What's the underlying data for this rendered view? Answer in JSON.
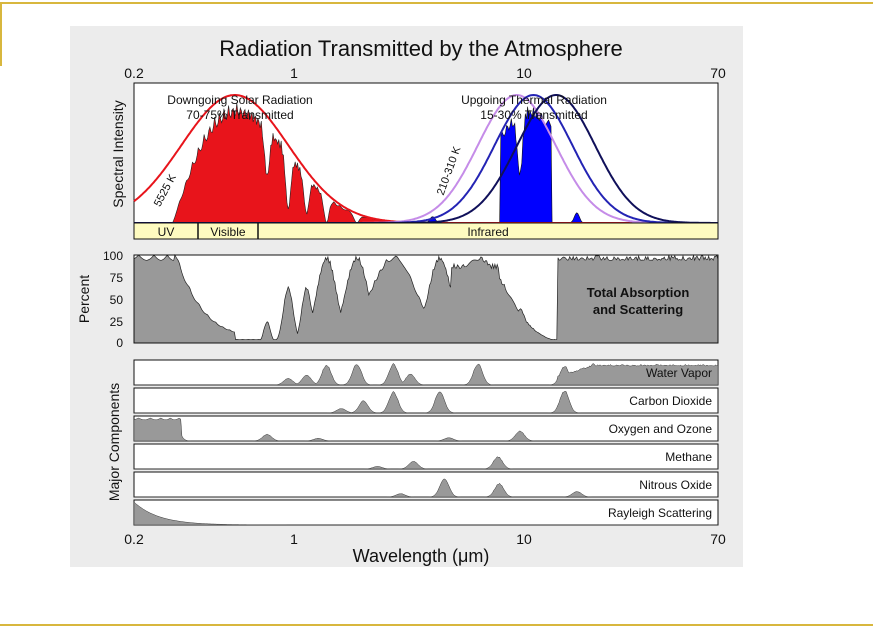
{
  "slide": {
    "accent_color": "#d8b73e",
    "panel_color": "#ececec"
  },
  "chart_data": {
    "type": "area",
    "title": "Radiation Transmitted by the Atmosphere",
    "xlabel": "Wavelength (μm)",
    "xscale": "log",
    "xlim": [
      0.2,
      70
    ],
    "xticks": [
      "0.2",
      "1",
      "10",
      "70"
    ],
    "spectral": {
      "ylabel": "Spectral Intensity",
      "solar": {
        "label_line1": "Downgoing Solar Radiation",
        "label_line2": "70-75% Transmitted",
        "curve_label": "5525 K",
        "peak_um": 0.55,
        "color": "#e8141b"
      },
      "thermal": {
        "label_line1": "Upgoing Thermal Radiation",
        "label_line2": "15-30% Transmitted",
        "curve_label": "210-310 K",
        "peaks_um": [
          9.3,
          11.0,
          13.8
        ],
        "colors": [
          "#c58ce8",
          "#2424b4",
          "#10105a"
        ],
        "fill_color": "#0000ff"
      },
      "bands": [
        {
          "label": "UV",
          "from_um": 0.2,
          "to_um": 0.4
        },
        {
          "label": "Visible",
          "from_um": 0.4,
          "to_um": 0.7
        },
        {
          "label": "Infrared",
          "from_um": 0.7,
          "to_um": 70
        }
      ]
    },
    "total": {
      "label_line1": "Total Absorption",
      "label_line2": "and Scattering",
      "ylabel": "Percent",
      "ylim": [
        0,
        100
      ],
      "yticks": [
        "100",
        "75",
        "50",
        "25",
        "0"
      ],
      "fill_color": "#999999"
    },
    "components": {
      "ylabel": "Major Components",
      "rows": [
        {
          "name": "Water Vapor",
          "peaks": [
            [
              0.94,
              0.3
            ],
            [
              1.13,
              0.45
            ],
            [
              1.38,
              0.9
            ],
            [
              1.87,
              0.95
            ],
            [
              2.7,
              0.95
            ],
            [
              3.2,
              0.5
            ],
            [
              6.3,
              0.95
            ],
            [
              15,
              0.85
            ],
            [
              20,
              1.0
            ]
          ]
        },
        {
          "name": "Carbon Dioxide",
          "peaks": [
            [
              1.6,
              0.2
            ],
            [
              2.0,
              0.55
            ],
            [
              2.7,
              0.95
            ],
            [
              4.3,
              1.0
            ],
            [
              15,
              1.0
            ]
          ]
        },
        {
          "name": "Oxygen and Ozone",
          "peaks": [
            [
              0.2,
              1.0
            ],
            [
              0.3,
              0.9
            ],
            [
              0.76,
              0.3
            ],
            [
              1.27,
              0.12
            ],
            [
              4.7,
              0.15
            ],
            [
              9.6,
              0.45
            ]
          ]
        },
        {
          "name": "Methane",
          "peaks": [
            [
              2.3,
              0.12
            ],
            [
              3.3,
              0.35
            ],
            [
              7.7,
              0.55
            ]
          ]
        },
        {
          "name": "Nitrous Oxide",
          "peaks": [
            [
              2.9,
              0.15
            ],
            [
              4.5,
              0.85
            ],
            [
              7.8,
              0.6
            ],
            [
              17,
              0.25
            ]
          ]
        },
        {
          "name": "Rayleigh Scattering",
          "curve": "lambda^-4"
        }
      ]
    }
  }
}
